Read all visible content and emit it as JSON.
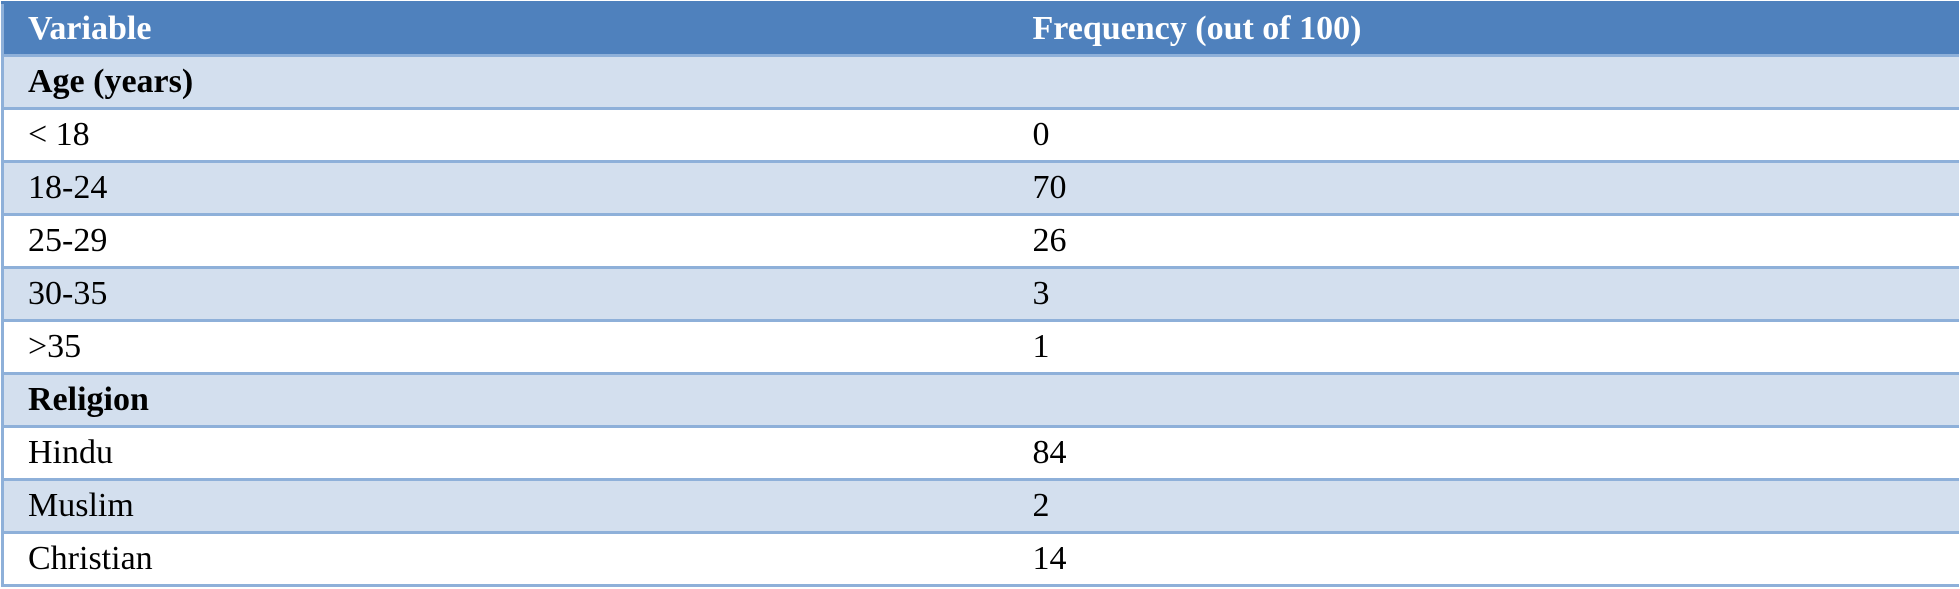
{
  "table": {
    "header": [
      "Variable",
      "Frequency (out of 100)"
    ],
    "rows": [
      [
        "Age (years)"
      ],
      [
        "< 18",
        0
      ],
      [
        "18-24",
        70
      ],
      [
        "25-29",
        26
      ],
      [
        "30-35",
        3
      ],
      [
        ">35",
        1
      ],
      [
        "Religion"
      ],
      [
        "Hindu",
        84
      ],
      [
        "Muslim",
        2
      ],
      [
        "Christian",
        14
      ]
    ]
  }
}
